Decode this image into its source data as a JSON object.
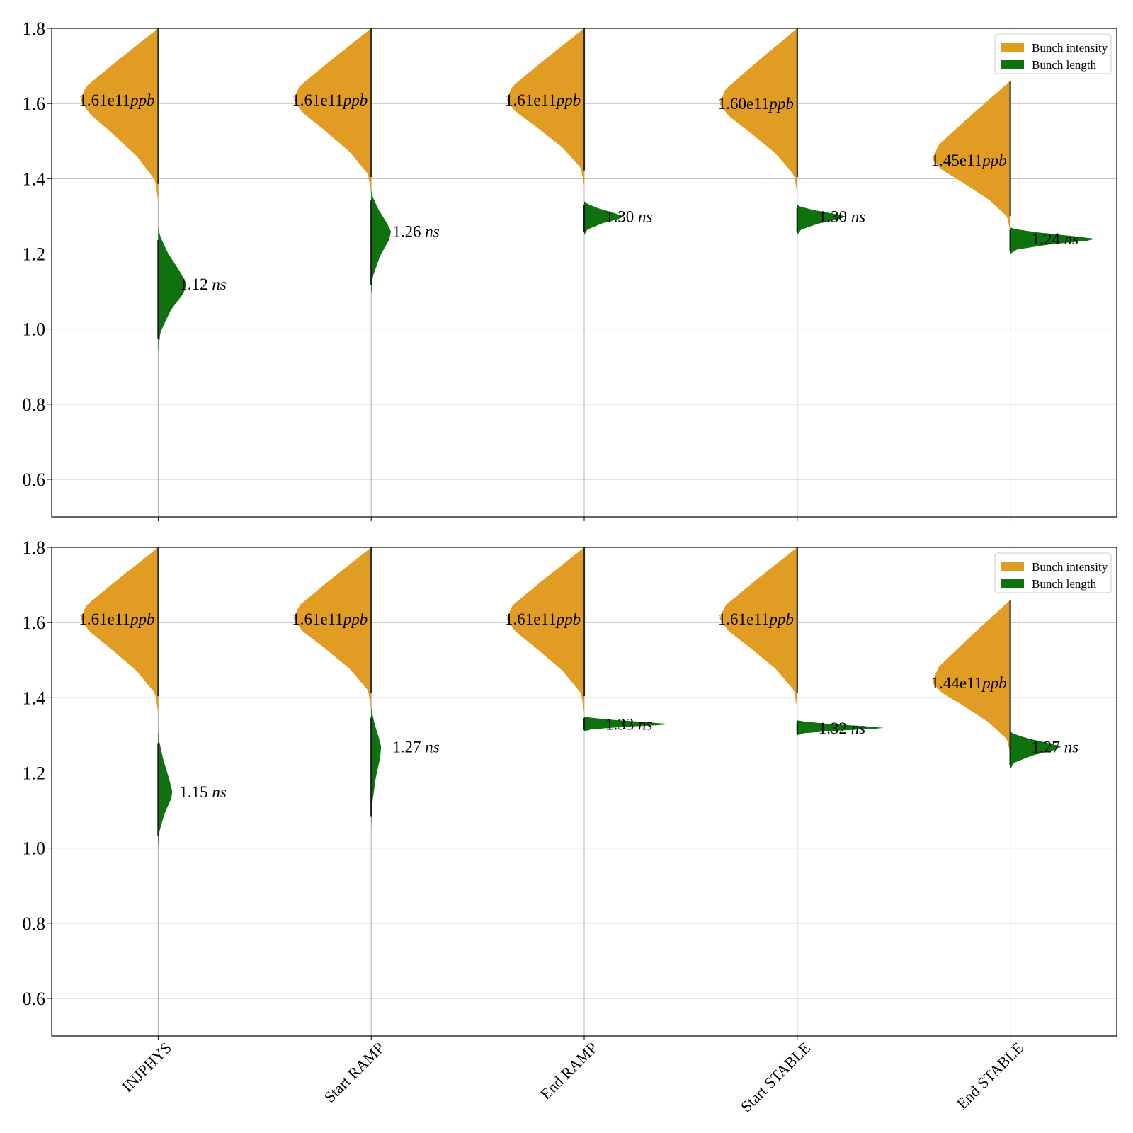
{
  "chart_data": {
    "type": "violin",
    "categories": [
      "INJPHYS",
      "Start RAMP",
      "End RAMP",
      "Start STABLE",
      "End STABLE"
    ],
    "ylim": [
      0.5,
      1.8
    ],
    "yticks": [
      "0.6",
      "0.8",
      "1.0",
      "1.2",
      "1.4",
      "1.6",
      "1.8"
    ],
    "grid": true,
    "legend_position": "top-right",
    "legend": [
      {
        "label": "Bunch intensity",
        "color": "#e19c24"
      },
      {
        "label": "Bunch length",
        "color": "#0e720e"
      }
    ],
    "panels": [
      {
        "intensity": {
          "medians": [
            1.61,
            1.61,
            1.61,
            1.6,
            1.45
          ],
          "labels": [
            "1.61e11",
            "1.61e11",
            "1.61e11",
            "1.60e11",
            "1.45e11"
          ],
          "unit": "ppb",
          "ranges": [
            [
              1.34,
              1.8
            ],
            [
              1.36,
              1.8
            ],
            [
              1.38,
              1.8
            ],
            [
              1.36,
              1.8
            ],
            [
              1.26,
              1.66
            ]
          ]
        },
        "length": {
          "medians": [
            1.12,
            1.26,
            1.3,
            1.3,
            1.24
          ],
          "labels": [
            "1.12",
            "1.26",
            "1.30",
            "1.30",
            "1.24"
          ],
          "unit": "ns",
          "ranges": [
            [
              0.94,
              1.27
            ],
            [
              1.09,
              1.37
            ],
            [
              1.25,
              1.34
            ],
            [
              1.25,
              1.33
            ],
            [
              1.2,
              1.27
            ]
          ]
        }
      },
      {
        "intensity": {
          "medians": [
            1.61,
            1.61,
            1.61,
            1.61,
            1.44
          ],
          "labels": [
            "1.61e11",
            "1.61e11",
            "1.61e11",
            "1.61e11",
            "1.44e11"
          ],
          "unit": "ppb",
          "ranges": [
            [
              1.36,
              1.8
            ],
            [
              1.37,
              1.8
            ],
            [
              1.36,
              1.8
            ],
            [
              1.37,
              1.8
            ],
            [
              1.25,
              1.66
            ]
          ]
        },
        "length": {
          "medians": [
            1.15,
            1.27,
            1.33,
            1.32,
            1.27
          ],
          "labels": [
            "1.15",
            "1.27",
            "1.33",
            "1.32",
            "1.27"
          ],
          "unit": "ns",
          "ranges": [
            [
              1.0,
              1.31
            ],
            [
              1.05,
              1.38
            ],
            [
              1.31,
              1.35
            ],
            [
              1.3,
              1.34
            ],
            [
              1.21,
              1.31
            ]
          ]
        }
      }
    ]
  }
}
